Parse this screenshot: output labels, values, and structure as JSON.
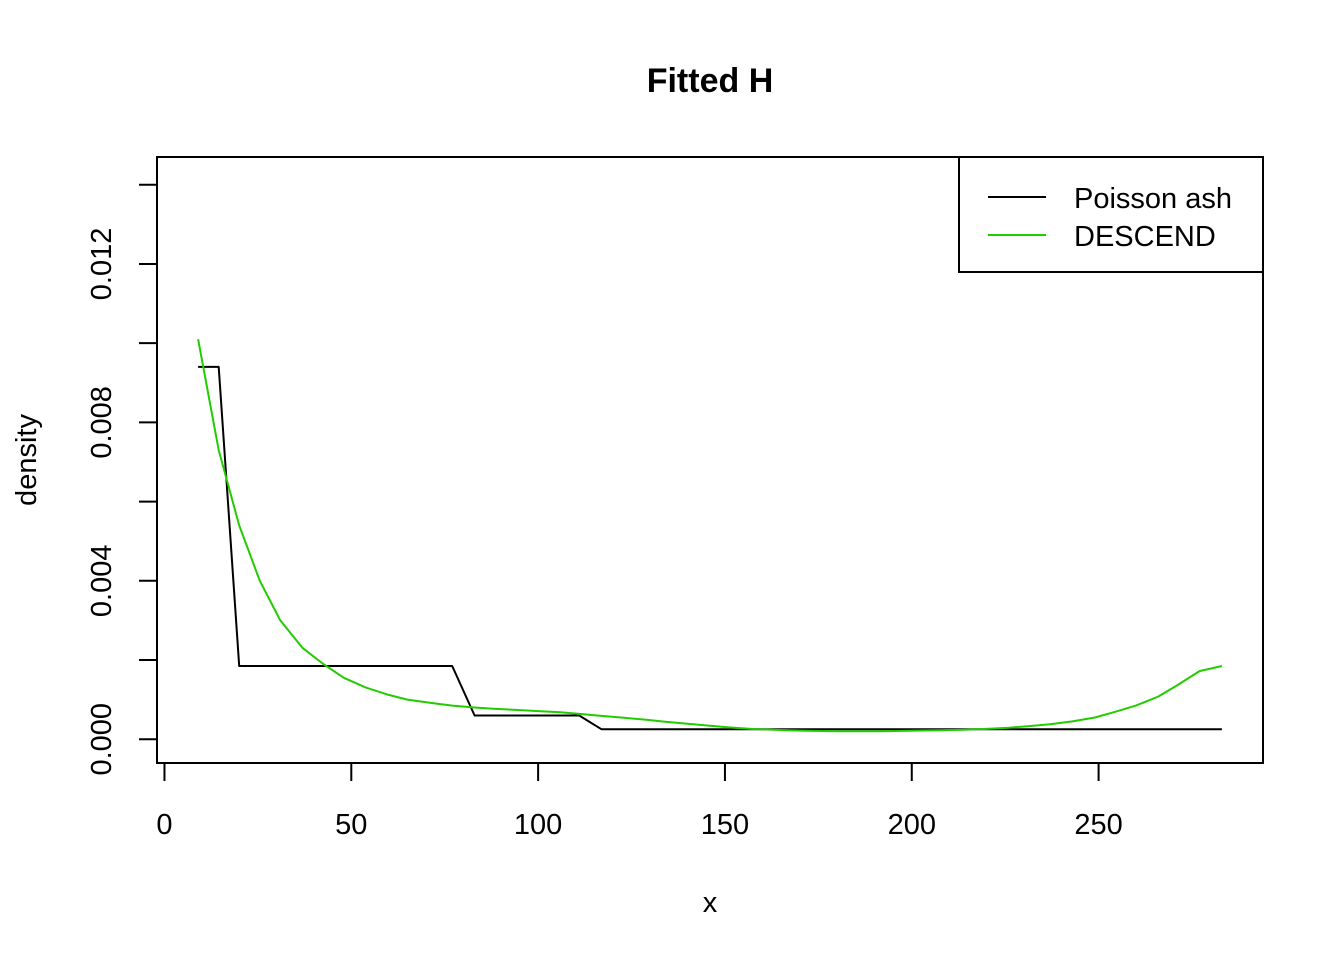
{
  "chart_data": {
    "type": "line",
    "title": "Fitted H",
    "xlabel": "x",
    "ylabel": "density",
    "xlim": [
      -2,
      294
    ],
    "ylim": [
      -0.0006,
      0.0147
    ],
    "x_ticks": [
      0,
      50,
      100,
      150,
      200,
      250
    ],
    "x_tick_labels": [
      "0",
      "50",
      "100",
      "150",
      "200",
      "250"
    ],
    "y_ticks": [
      0.0,
      0.002,
      0.004,
      0.006,
      0.008,
      0.01,
      0.012,
      0.014
    ],
    "y_tick_labels": [
      "0.000",
      "",
      "0.004",
      "",
      "0.008",
      "",
      "0.012",
      ""
    ],
    "grid": false,
    "legend_position": "top-right",
    "series": [
      {
        "name": "Poisson ash",
        "color": "#000000",
        "x": [
          9,
          14.5,
          20,
          77,
          83,
          111,
          117,
          283
        ],
        "y": [
          0.0094,
          0.0094,
          0.00185,
          0.00185,
          0.0006,
          0.0006,
          0.00025,
          0.00025
        ]
      },
      {
        "name": "DESCEND",
        "color": "#22cc00",
        "x": [
          9,
          14.5,
          20,
          25.5,
          31,
          37,
          42.5,
          48,
          54,
          60,
          65,
          71,
          77,
          83,
          88,
          94,
          100,
          106,
          111,
          117,
          123,
          129,
          134,
          140,
          146,
          151,
          157,
          163,
          169,
          174,
          180,
          186,
          192,
          197,
          203,
          209,
          214,
          220,
          226,
          231,
          237,
          243,
          249,
          254,
          260,
          266,
          271,
          277,
          283
        ],
        "y": [
          0.0101,
          0.0073,
          0.0054,
          0.004,
          0.003,
          0.0023,
          0.0019,
          0.00155,
          0.0013,
          0.00112,
          0.001,
          0.00092,
          0.00085,
          0.0008,
          0.00077,
          0.00074,
          0.00071,
          0.00068,
          0.00064,
          0.00059,
          0.00054,
          0.00049,
          0.00044,
          0.00039,
          0.00034,
          0.0003,
          0.00026,
          0.00024,
          0.00022,
          0.00021,
          0.0002,
          0.0002,
          0.0002,
          0.00021,
          0.00022,
          0.00023,
          0.00024,
          0.00026,
          0.00029,
          0.00033,
          0.00038,
          0.00045,
          0.00055,
          0.00068,
          0.00085,
          0.00108,
          0.00136,
          0.00172,
          0.00185
        ]
      }
    ]
  }
}
